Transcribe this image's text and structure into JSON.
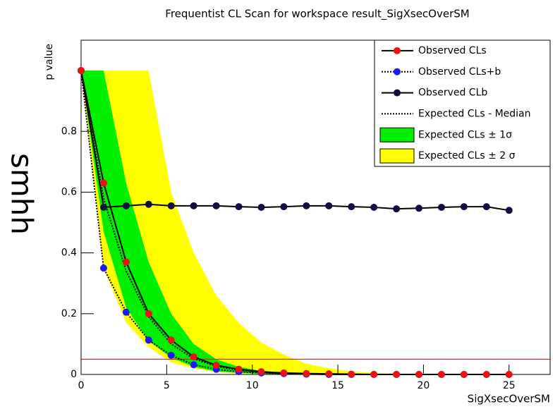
{
  "chart_data": {
    "type": "line",
    "title": "Frequentist CL Scan for workspace result_SigXsecOverSM",
    "side_label": "smhh",
    "y_label": "p value",
    "x_label": "SigXsecOverSM",
    "xlim": [
      0,
      27.4
    ],
    "ylim": [
      0,
      1.1
    ],
    "xticks": [
      0,
      5,
      10,
      15,
      20,
      25
    ],
    "yticks": [
      0,
      0.2,
      0.4,
      0.6,
      0.8
    ],
    "hline": {
      "value": 0.05,
      "color": "#e02020"
    },
    "x": [
      0,
      1.316,
      2.632,
      3.947,
      5.263,
      6.579,
      7.895,
      9.211,
      10.526,
      11.842,
      13.158,
      14.474,
      15.789,
      17.105,
      18.421,
      19.737,
      21.053,
      22.368,
      23.684,
      25
    ],
    "bands": [
      {
        "name": "Expected CLs ± 2 σ",
        "color": "#ffff00",
        "upper": [
          1.0,
          1.0,
          1.0,
          1.0,
          0.6,
          0.4,
          0.26,
          0.17,
          0.105,
          0.065,
          0.035,
          0.02,
          0.01,
          0.005,
          0.003,
          0.001,
          0,
          0,
          0,
          0
        ],
        "lower": [
          1.0,
          0.35,
          0.17,
          0.09,
          0.04,
          0.02,
          0.008,
          0.003,
          0.001,
          0,
          0,
          0,
          0,
          0,
          0,
          0,
          0,
          0,
          0,
          0
        ]
      },
      {
        "name": "Expected CLs ± 1σ",
        "color": "#00ee00",
        "upper": [
          1.0,
          1.0,
          0.63,
          0.37,
          0.2,
          0.1,
          0.05,
          0.025,
          0.012,
          0.005,
          0.002,
          0.001,
          0,
          0,
          0,
          0,
          0,
          0,
          0,
          0
        ],
        "lower": [
          1.0,
          0.47,
          0.22,
          0.11,
          0.055,
          0.025,
          0.01,
          0.005,
          0.002,
          0.001,
          0,
          0,
          0,
          0,
          0,
          0,
          0,
          0,
          0,
          0
        ]
      }
    ],
    "series": [
      {
        "name": "Expected CLs - Median",
        "color": "#000000",
        "line": "dotted",
        "marker": false,
        "values": [
          1.0,
          0.58,
          0.34,
          0.19,
          0.1,
          0.052,
          0.027,
          0.014,
          0.007,
          0.003,
          0.001,
          0,
          0,
          0,
          0,
          0,
          0,
          0,
          0,
          0
        ]
      },
      {
        "name": "Observed CLs+b",
        "color": "#1a1aff",
        "line": "dotted",
        "marker": true,
        "values": [
          1.0,
          0.35,
          0.205,
          0.113,
          0.063,
          0.032,
          0.017,
          0.009,
          0.005,
          0.003,
          0.001,
          0,
          0,
          0,
          0,
          0,
          0,
          0,
          0,
          0
        ]
      },
      {
        "name": "Observed CLb",
        "color": "#101040",
        "line": "solid",
        "marker": true,
        "values": [
          1.0,
          0.55,
          0.555,
          0.56,
          0.555,
          0.555,
          0.555,
          0.552,
          0.55,
          0.552,
          0.555,
          0.555,
          0.552,
          0.55,
          0.545,
          0.547,
          0.55,
          0.552,
          0.552,
          0.54
        ]
      },
      {
        "name": "Observed CLs",
        "color": "#ee1111",
        "line": "solid",
        "marker": true,
        "values": [
          1.0,
          0.63,
          0.37,
          0.2,
          0.113,
          0.058,
          0.03,
          0.017,
          0.009,
          0.005,
          0.003,
          0.002,
          0.001,
          0,
          0,
          0,
          0,
          0,
          0,
          0
        ]
      }
    ],
    "legend_order": [
      3,
      1,
      2,
      0
    ]
  }
}
